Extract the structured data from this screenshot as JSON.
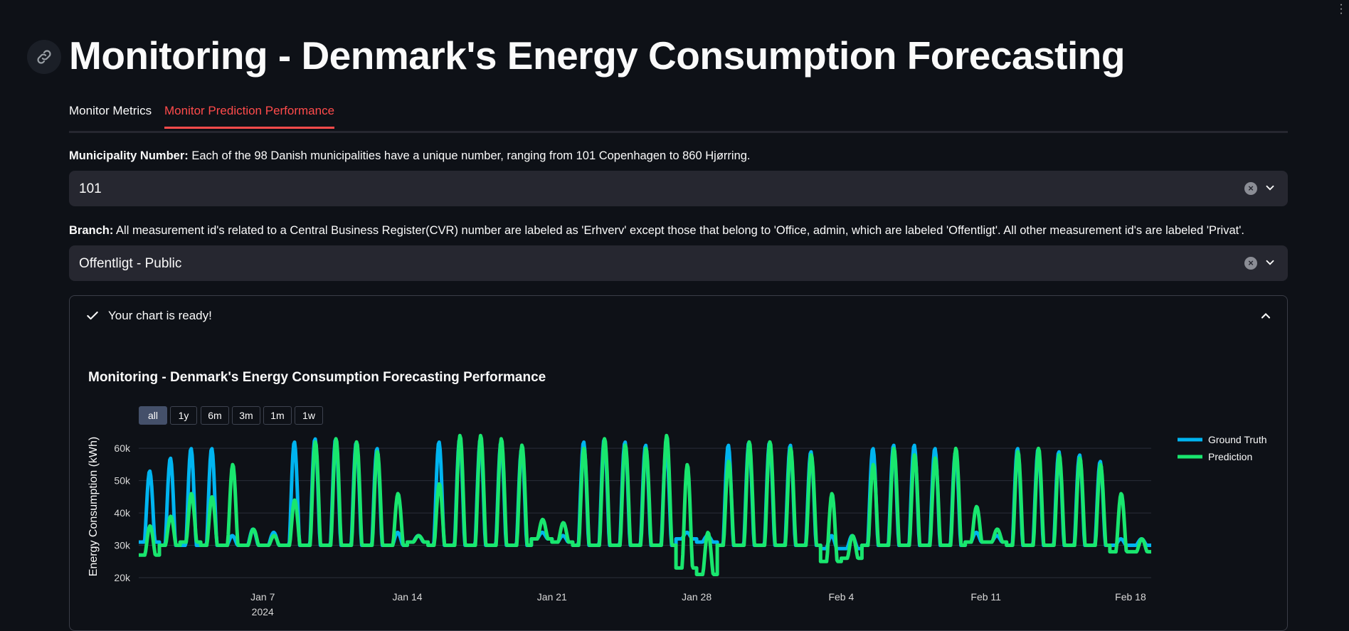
{
  "page": {
    "title": "Monitoring - Denmark's Energy Consumption Forecasting",
    "tabs": [
      {
        "label": "Monitor Metrics",
        "active": false
      },
      {
        "label": "Monitor Prediction Performance",
        "active": true
      }
    ],
    "municipality": {
      "label_bold": "Municipality Number:",
      "label_text": " Each of the 98 Danish municipalities have a unique number, ranging from 101 Copenhagen to 860 Hjørring.",
      "value": "101"
    },
    "branch": {
      "label_bold": "Branch:",
      "label_text": " All measurement id's related to a Central Business Register(CVR) number are labeled as 'Erhverv' except those that belong to 'Office, admin, which are labeled 'Offentligt'. All other measurement id's are labeled 'Privat'.",
      "value": "Offentligt - Public"
    },
    "expander": {
      "label": "Your chart is ready!"
    },
    "range_selector": [
      "all",
      "1y",
      "6m",
      "3m",
      "1m",
      "1w"
    ],
    "range_selected": "all",
    "accent_color": "#ff4b4b",
    "background_color": "#0e1117"
  },
  "chart_data": {
    "type": "line",
    "title": "Monitoring - Denmark's Energy Consumption Forecasting Performance",
    "xlabel": "",
    "ylabel": "Energy Consumption (kWh)",
    "ylim": [
      20000,
      64000
    ],
    "yticks": [
      20000,
      30000,
      40000,
      50000,
      60000
    ],
    "ytick_labels": [
      "20k",
      "30k",
      "40k",
      "50k",
      "60k"
    ],
    "xlim": [
      "2024-01-01",
      "2024-02-19"
    ],
    "xticks": [
      "2024-01-07",
      "2024-01-14",
      "2024-01-21",
      "2024-01-28",
      "2024-02-04",
      "2024-02-11",
      "2024-02-18"
    ],
    "xtick_labels": [
      "Jan 7",
      "Jan 14",
      "Jan 21",
      "Jan 28",
      "Feb 4",
      "Feb 11",
      "Feb 18"
    ],
    "xtick_year_label": "2024",
    "legend_position": "right",
    "grid": true,
    "dates": [
      "2024-01-01",
      "2024-01-02",
      "2024-01-03",
      "2024-01-04",
      "2024-01-05",
      "2024-01-06",
      "2024-01-07",
      "2024-01-08",
      "2024-01-09",
      "2024-01-10",
      "2024-01-11",
      "2024-01-12",
      "2024-01-13",
      "2024-01-14",
      "2024-01-15",
      "2024-01-16",
      "2024-01-17",
      "2024-01-18",
      "2024-01-19",
      "2024-01-20",
      "2024-01-21",
      "2024-01-22",
      "2024-01-23",
      "2024-01-24",
      "2024-01-25",
      "2024-01-26",
      "2024-01-27",
      "2024-01-28",
      "2024-01-29",
      "2024-01-30",
      "2024-01-31",
      "2024-02-01",
      "2024-02-02",
      "2024-02-03",
      "2024-02-04",
      "2024-02-05",
      "2024-02-06",
      "2024-02-07",
      "2024-02-08",
      "2024-02-09",
      "2024-02-10",
      "2024-02-11",
      "2024-02-12",
      "2024-02-13",
      "2024-02-14",
      "2024-02-15",
      "2024-02-16",
      "2024-02-17",
      "2024-02-18"
    ],
    "series": [
      {
        "name": "Ground Truth",
        "color": "#00b4f0",
        "daily_peak": [
          53000,
          57000,
          60000,
          60000,
          33000,
          35000,
          34000,
          62000,
          63000,
          63000,
          62000,
          60000,
          34000,
          33000,
          62000,
          63000,
          63000,
          62000,
          60000,
          34000,
          33000,
          62000,
          63000,
          62000,
          61000,
          60000,
          34000,
          33000,
          61000,
          62000,
          62000,
          61000,
          59000,
          33000,
          33000,
          60000,
          61000,
          61000,
          60000,
          59000,
          34000,
          33000,
          60000,
          60000,
          59000,
          58000,
          56000,
          32000,
          32000
        ],
        "daily_base": [
          31000,
          30000,
          30000,
          30000,
          30000,
          30000,
          30000,
          30000,
          30000,
          30000,
          30000,
          30000,
          30000,
          31000,
          30000,
          30000,
          30000,
          30000,
          30000,
          32000,
          31000,
          30000,
          30000,
          30000,
          30000,
          30000,
          32000,
          31000,
          30000,
          30000,
          30000,
          30000,
          30000,
          29000,
          29000,
          30000,
          30000,
          30000,
          30000,
          30000,
          31000,
          31000,
          30000,
          30000,
          30000,
          30000,
          30000,
          30000,
          30000
        ]
      },
      {
        "name": "Prediction",
        "color": "#19e66e",
        "daily_peak": [
          36000,
          39000,
          46000,
          45000,
          55000,
          35000,
          33000,
          44000,
          62000,
          63000,
          62000,
          59000,
          46000,
          33000,
          49000,
          64000,
          64000,
          63000,
          61000,
          38000,
          37000,
          60000,
          63000,
          61000,
          60000,
          64000,
          55000,
          34000,
          56000,
          62000,
          62000,
          60000,
          58000,
          46000,
          33000,
          55000,
          60000,
          58000,
          57000,
          60000,
          42000,
          35000,
          59000,
          60000,
          58000,
          57000,
          55000,
          46000,
          32000
        ],
        "daily_base": [
          27000,
          30000,
          31000,
          30000,
          30000,
          30000,
          30000,
          30000,
          30000,
          30000,
          30000,
          30000,
          30000,
          31000,
          30000,
          30000,
          30000,
          30000,
          30000,
          32000,
          31000,
          30000,
          30000,
          30000,
          30000,
          30000,
          23000,
          21000,
          30000,
          30000,
          30000,
          30000,
          30000,
          25000,
          26000,
          30000,
          30000,
          30000,
          30000,
          30000,
          31000,
          31000,
          30000,
          30000,
          30000,
          30000,
          30000,
          28000,
          28000
        ]
      }
    ]
  }
}
